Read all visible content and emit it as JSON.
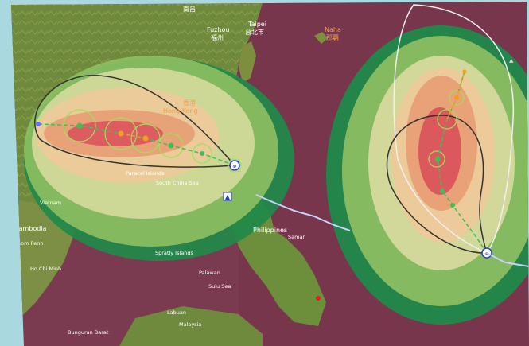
{
  "map": {
    "colors": {
      "background_frame": "#9fcfd9",
      "land": "#6f8a3c",
      "sea": "#7a3a4f",
      "outer_ring": "#1f8a4a",
      "ring2": "#8fbf62",
      "ring3": "#d9dca0",
      "ring4": "#eec99a",
      "ring5": "#e89d74",
      "core": "#d9505a",
      "cone_outline": "#333333",
      "track_green": "#3fbf5a",
      "track_orange": "#f0a020",
      "observed_track": "#c8d0ff"
    },
    "place_labels": {
      "nanchang_cn": "南昌",
      "fuzhou": "Fuzhou",
      "fuzhou_cn": "福州",
      "taipei": "Taipei",
      "taipei_cn": "台北市",
      "naha": "Naha",
      "naha_cn": "那覇",
      "hong_kong": "Hong Kong",
      "hong_kong_cn": "香港",
      "paracel": "Paracel Islands",
      "south_china_sea": "South China Sea",
      "cambodia": "Cambodia",
      "phnom_penh": "Phnom Penh",
      "ho_chi_minh": "Ho Chi Minh",
      "philippines": "Philippines",
      "samar": "Samar",
      "spratly": "Spratly Islands",
      "palawan": "Palawan",
      "sulu_sea": "Sulu Sea",
      "vietnam": "Vietnam",
      "bunguran": "Bunguran Barat",
      "labuan": "Labuan",
      "malaysia": "Malaysia"
    },
    "storms": [
      {
        "name": "west-typhoon",
        "symbol": "typhoon-symbol"
      },
      {
        "name": "east-typhoon",
        "symbol": "typhoon-symbol"
      }
    ]
  }
}
